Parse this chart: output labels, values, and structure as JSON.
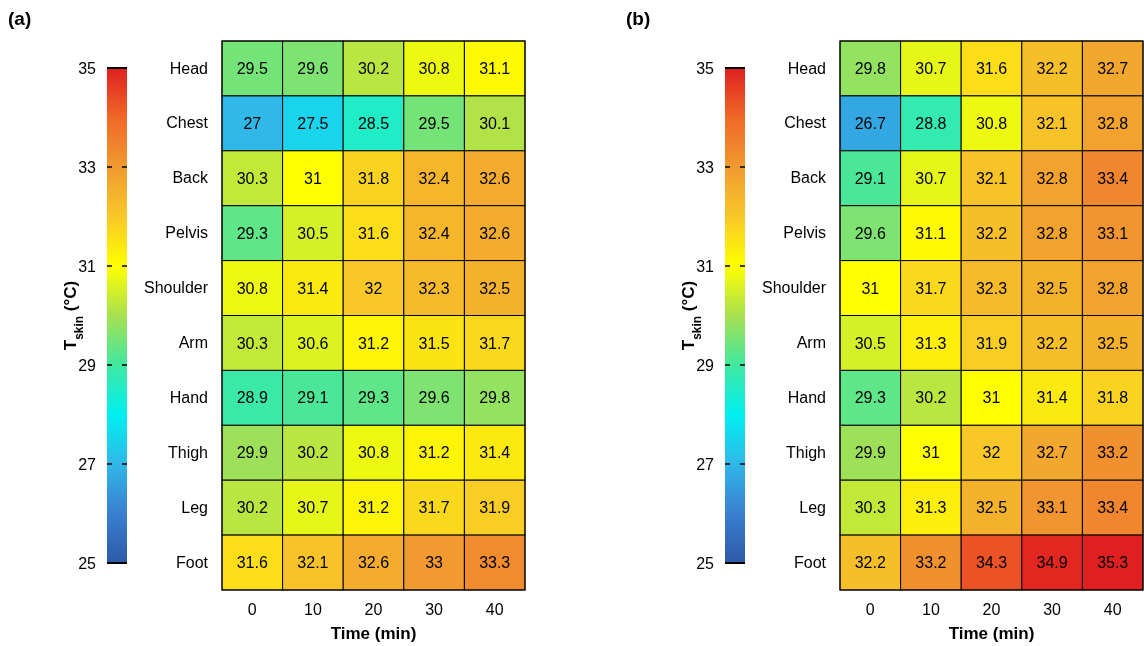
{
  "chart_data": [
    {
      "type": "heatmap",
      "title": "(a)",
      "xlabel": "Time (min)",
      "clabel": "T$_{skin}$ (°C)",
      "categories": [
        "0",
        "10",
        "20",
        "30",
        "40"
      ],
      "y_categories": [
        "Head",
        "Chest",
        "Back",
        "Pelvis",
        "Shoulder",
        "Arm",
        "Hand",
        "Thigh",
        "Leg",
        "Foot"
      ],
      "cells": [
        [
          29.5,
          29.6,
          30.2,
          30.8,
          31.1
        ],
        [
          27,
          27.5,
          28.5,
          29.5,
          30.1
        ],
        [
          30.3,
          31,
          31.8,
          32.4,
          32.6
        ],
        [
          29.3,
          30.5,
          31.6,
          32.4,
          32.6
        ],
        [
          30.8,
          31.4,
          32,
          32.3,
          32.5
        ],
        [
          30.3,
          30.6,
          31.2,
          31.5,
          31.7
        ],
        [
          28.9,
          29.1,
          29.3,
          29.6,
          29.8
        ],
        [
          29.9,
          30.2,
          30.8,
          31.2,
          31.4
        ],
        [
          30.2,
          30.7,
          31.2,
          31.7,
          31.9
        ],
        [
          31.6,
          32.1,
          32.6,
          33,
          33.3
        ]
      ],
      "clim": [
        25,
        35
      ],
      "cticks": [
        25,
        27,
        29,
        31,
        33,
        35
      ],
      "colors": [
        "#2d5aa8",
        "#3a7fd0",
        "#30b8e8",
        "#00f0f0",
        "#40e8a0",
        "#a8e050",
        "#ffff00",
        "#f8c828",
        "#f09a30",
        "#f06828",
        "#e02020"
      ],
      "data_labels": true
    },
    {
      "type": "heatmap",
      "title": "(b)",
      "xlabel": "Time (min)",
      "clabel": "T$_{skin}$ (°C)",
      "categories": [
        "0",
        "10",
        "20",
        "30",
        "40"
      ],
      "y_categories": [
        "Head",
        "Chest",
        "Back",
        "Pelvis",
        "Shoulder",
        "Arm",
        "Hand",
        "Thigh",
        "Leg",
        "Foot"
      ],
      "cells": [
        [
          29.8,
          30.7,
          31.6,
          32.2,
          32.7
        ],
        [
          26.7,
          28.8,
          30.8,
          32.1,
          32.8
        ],
        [
          29.1,
          30.7,
          32.1,
          32.8,
          33.4
        ],
        [
          29.6,
          31.1,
          32.2,
          32.8,
          33.1
        ],
        [
          31,
          31.7,
          32.3,
          32.5,
          32.8
        ],
        [
          30.5,
          31.3,
          31.9,
          32.2,
          32.5
        ],
        [
          29.3,
          30.2,
          31,
          31.4,
          31.8
        ],
        [
          29.9,
          31,
          32,
          32.7,
          33.2
        ],
        [
          30.3,
          31.3,
          32.5,
          33.1,
          33.4
        ],
        [
          32.2,
          33.2,
          34.3,
          34.9,
          35.3
        ]
      ],
      "clim": [
        25,
        35
      ],
      "cticks": [
        25,
        27,
        29,
        31,
        33,
        35
      ],
      "colors": [
        "#2d5aa8",
        "#3a7fd0",
        "#30b8e8",
        "#00f0f0",
        "#40e8a0",
        "#a8e050",
        "#ffff00",
        "#f8c828",
        "#f09a30",
        "#f06828",
        "#e02020"
      ],
      "data_labels": true
    }
  ]
}
